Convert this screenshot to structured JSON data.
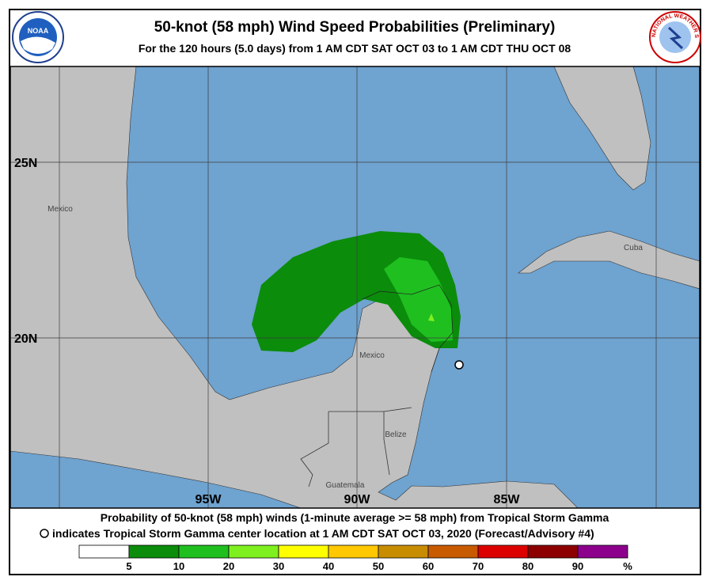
{
  "header": {
    "title": "50-knot (58 mph) Wind Speed Probabilities (Preliminary)",
    "subtitle": "For the 120 hours (5.0 days) from 1 AM CDT SAT OCT 03 to 1 AM CDT THU OCT 08",
    "left_logo": "NOAA",
    "right_logo": "NATIONAL WEATHER SERVICE"
  },
  "map": {
    "lat_labels": [
      "25N",
      "20N"
    ],
    "lon_labels": [
      "95W",
      "90W",
      "85W"
    ],
    "places": [
      "Mexico",
      "Mexico",
      "Cuba",
      "Belize",
      "Guatemala"
    ]
  },
  "footer": {
    "line1": "Probability of 50-knot (58 mph) winds (1-minute average >= 58 mph) from Tropical Storm Gamma",
    "line2": "indicates Tropical Storm Gamma center location at 1 AM CDT SAT OCT 03, 2020 (Forecast/Advisory #4)"
  },
  "legend": {
    "colors": [
      "#ffffff",
      "#0b8c0b",
      "#1fbf1f",
      "#7ff01f",
      "#ffff00",
      "#ffc800",
      "#c88c00",
      "#c85a00",
      "#dc0000",
      "#8c0000",
      "#8c008c"
    ],
    "labels": [
      5,
      10,
      20,
      30,
      40,
      50,
      60,
      70,
      80,
      90,
      "%"
    ]
  }
}
